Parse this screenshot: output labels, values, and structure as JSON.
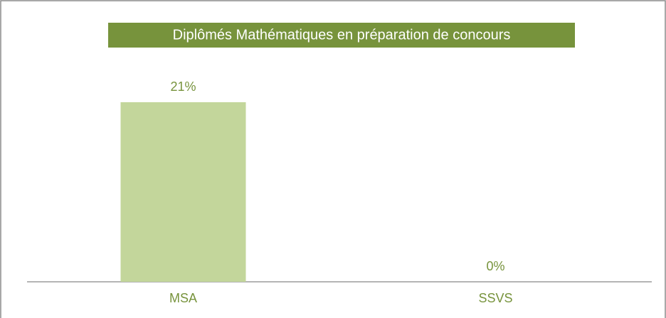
{
  "chart_data": {
    "type": "bar",
    "title": "Diplômés Mathématiques en préparation de concours",
    "categories": [
      "MSA",
      "SSVS"
    ],
    "values": [
      21,
      0
    ],
    "value_labels": [
      "21%",
      "0%"
    ],
    "color": "#c3d69b"
  }
}
